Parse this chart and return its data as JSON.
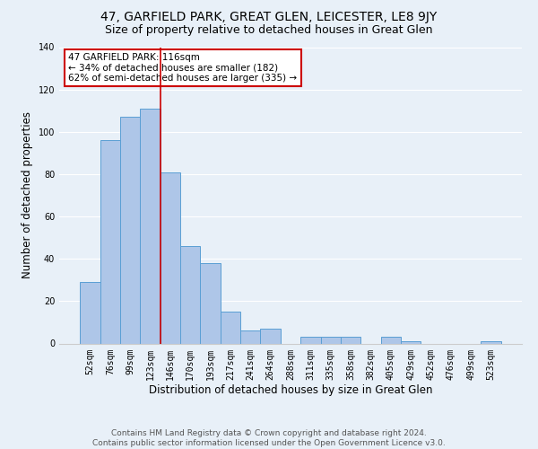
{
  "title": "47, GARFIELD PARK, GREAT GLEN, LEICESTER, LE8 9JY",
  "subtitle": "Size of property relative to detached houses in Great Glen",
  "xlabel": "Distribution of detached houses by size in Great Glen",
  "ylabel": "Number of detached properties",
  "categories": [
    "52sqm",
    "76sqm",
    "99sqm",
    "123sqm",
    "146sqm",
    "170sqm",
    "193sqm",
    "217sqm",
    "241sqm",
    "264sqm",
    "288sqm",
    "311sqm",
    "335sqm",
    "358sqm",
    "382sqm",
    "405sqm",
    "429sqm",
    "452sqm",
    "476sqm",
    "499sqm",
    "523sqm"
  ],
  "values": [
    29,
    96,
    107,
    111,
    81,
    46,
    38,
    15,
    6,
    7,
    0,
    3,
    3,
    3,
    0,
    3,
    1,
    0,
    0,
    0,
    1
  ],
  "bar_color": "#aec6e8",
  "bar_edge_color": "#5a9fd4",
  "background_color": "#e8f0f8",
  "grid_color": "#ffffff",
  "vline_x": 3.5,
  "vline_color": "#cc0000",
  "annotation_text": "47 GARFIELD PARK: 116sqm\n← 34% of detached houses are smaller (182)\n62% of semi-detached houses are larger (335) →",
  "annotation_box_color": "#cc0000",
  "footnote": "Contains HM Land Registry data © Crown copyright and database right 2024.\nContains public sector information licensed under the Open Government Licence v3.0.",
  "ylim": [
    0,
    140
  ],
  "yticks": [
    0,
    20,
    40,
    60,
    80,
    100,
    120,
    140
  ],
  "title_fontsize": 10,
  "subtitle_fontsize": 9,
  "xlabel_fontsize": 8.5,
  "ylabel_fontsize": 8.5,
  "tick_fontsize": 7,
  "footnote_fontsize": 6.5,
  "annotation_fontsize": 7.5
}
